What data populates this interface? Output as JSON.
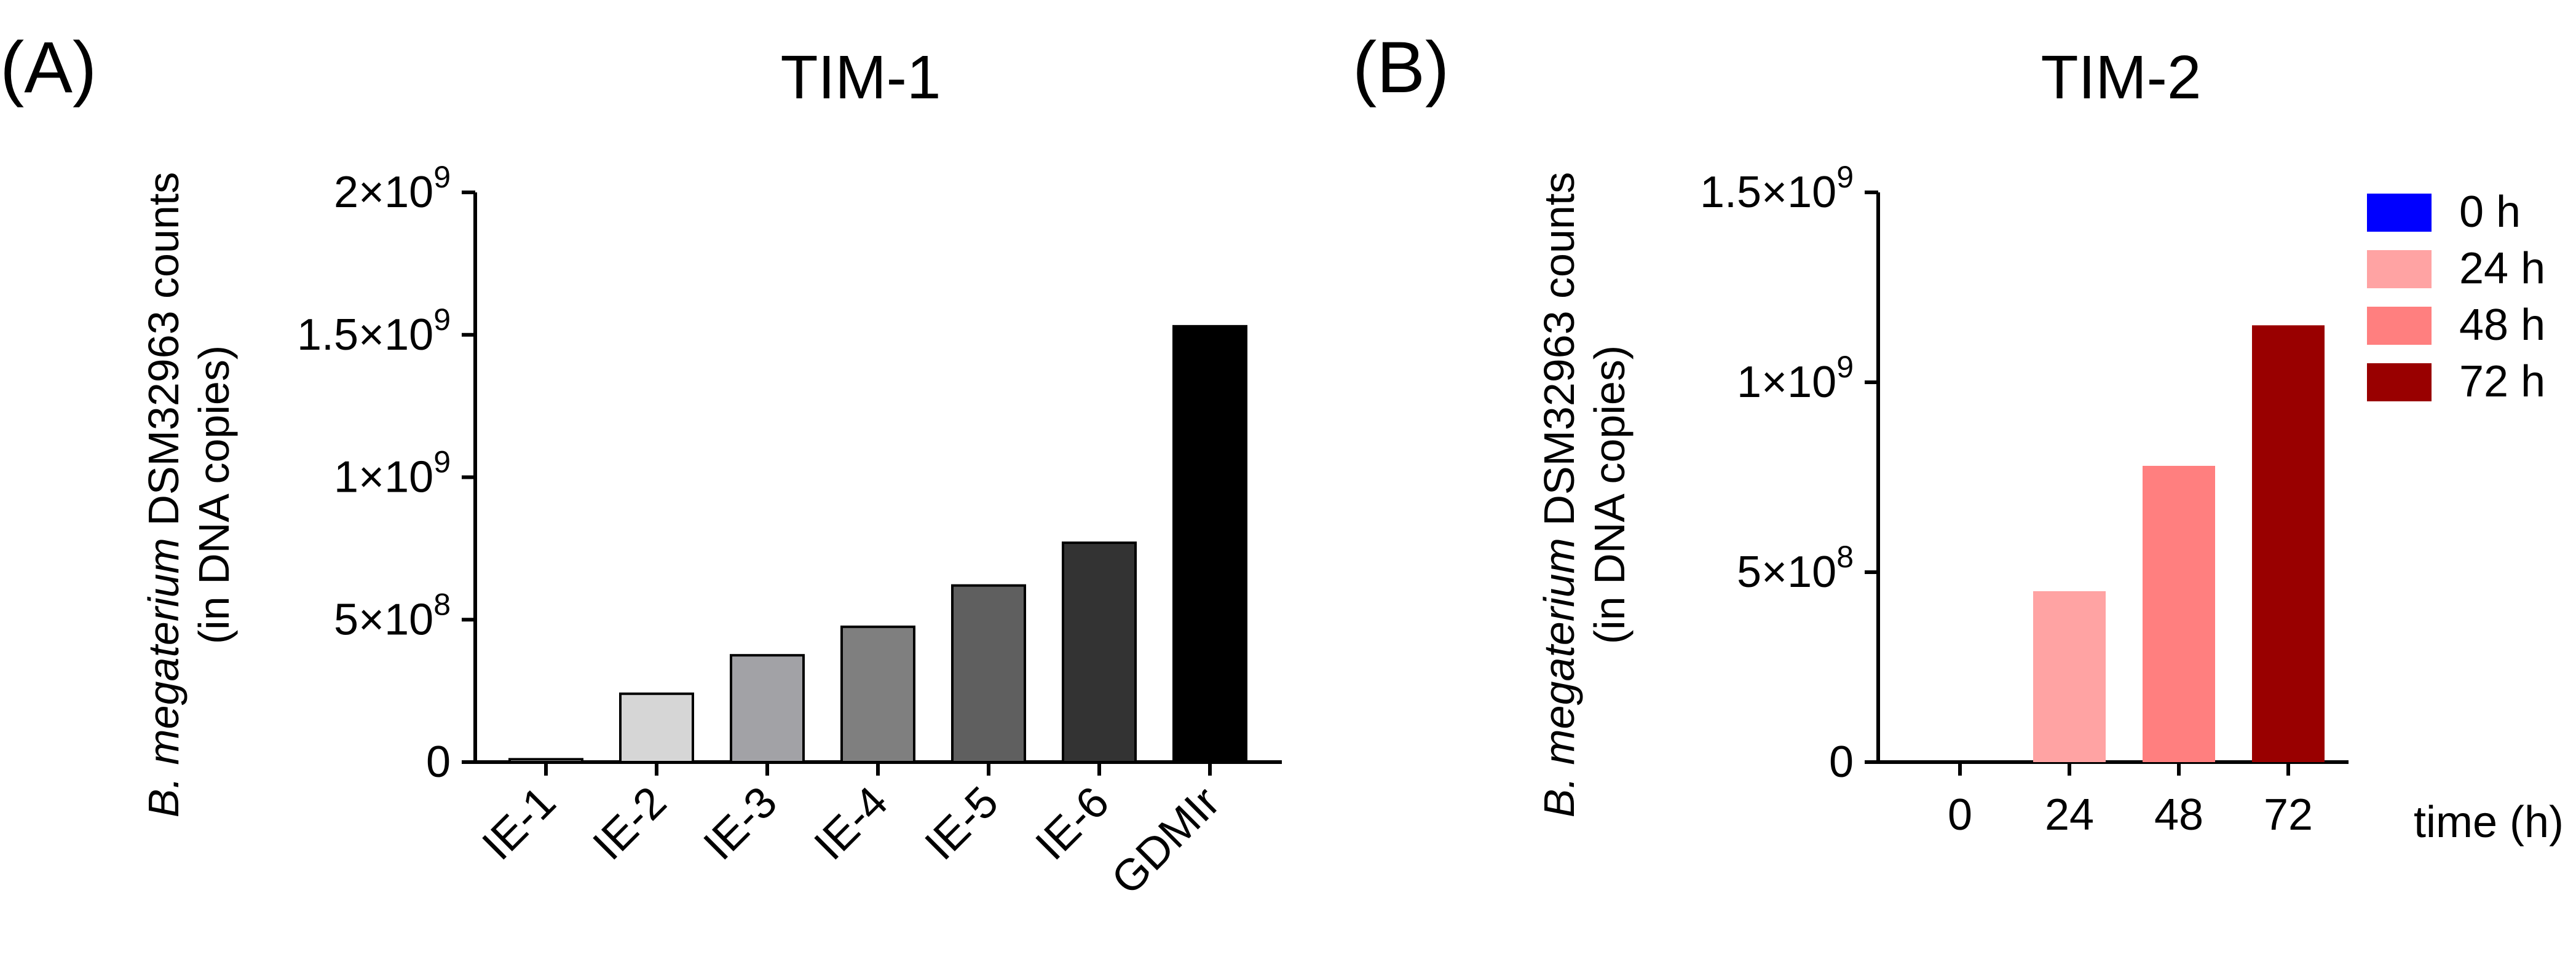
{
  "figure": {
    "panel_a_label": "(A)",
    "panel_b_label": "(B)"
  },
  "chart_data": [
    {
      "type": "bar",
      "title": "TIM-1",
      "ylabel_italic": "B. megaterium",
      "ylabel_rest": " DSM32963 counts",
      "ylabel_line2": "(in DNA copies)",
      "xlabel": "",
      "ylim": [
        0,
        2000000000
      ],
      "yticks": [
        {
          "value": 0,
          "base": "0",
          "exp": ""
        },
        {
          "value": 500000000,
          "base": "5×10",
          "exp": "8"
        },
        {
          "value": 1000000000,
          "base": "1×10",
          "exp": "9"
        },
        {
          "value": 1500000000,
          "base": "1.5×10",
          "exp": "9"
        },
        {
          "value": 2000000000,
          "base": "2×10",
          "exp": "9"
        }
      ],
      "categories": [
        "IE-1",
        "IE-2",
        "IE-3",
        "IE-4",
        "IE-5",
        "IE-6",
        "GDMIr"
      ],
      "values": [
        10000000,
        240000000,
        375000000,
        475000000,
        620000000,
        770000000,
        1530000000
      ],
      "colors": [
        "#e2e2e2",
        "#d6d6d6",
        "#a2a2a6",
        "#7f7f7f",
        "#5f5f5f",
        "#333333",
        "#000000"
      ],
      "grid": false
    },
    {
      "type": "bar",
      "title": "TIM-2",
      "ylabel_italic": "B. megaterium",
      "ylabel_rest": " DSM32963 counts",
      "ylabel_line2": "(in DNA copies)",
      "xlabel": "time (h)",
      "ylim": [
        0,
        1500000000
      ],
      "yticks": [
        {
          "value": 0,
          "base": "0",
          "exp": ""
        },
        {
          "value": 500000000,
          "base": "5×10",
          "exp": "8"
        },
        {
          "value": 1000000000,
          "base": "1×10",
          "exp": "9"
        },
        {
          "value": 1500000000,
          "base": "1.5×10",
          "exp": "9"
        }
      ],
      "categories": [
        "0",
        "24",
        "48",
        "72"
      ],
      "values": [
        0,
        450000000,
        780000000,
        1150000000
      ],
      "colors": [
        "#0000ff",
        "#ffa3a3",
        "#ff7f7f",
        "#990000"
      ],
      "legend": {
        "position": "top-right",
        "entries": [
          "0 h",
          "24 h",
          "48 h",
          "72 h"
        ]
      },
      "grid": false
    }
  ]
}
